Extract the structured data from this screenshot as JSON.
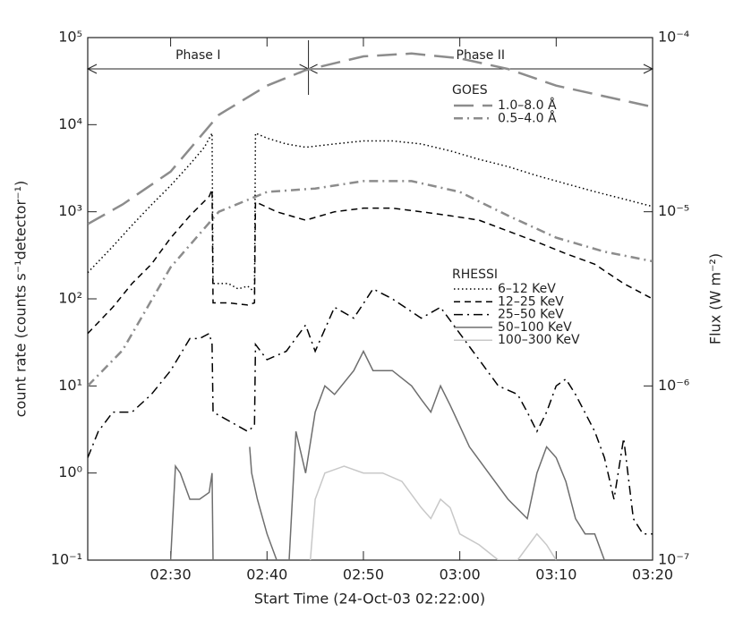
{
  "chart_data": {
    "type": "line",
    "log_scale": true,
    "xlabel": "Start Time (24-Oct-03 02:22:00)",
    "ylabel": "count rate (counts s⁻¹detector⁻¹)",
    "y2label": "Flux (W m⁻²)",
    "xlim": [
      -0.6,
      58
    ],
    "xticks": [
      {
        "value": 8,
        "label": "02:30"
      },
      {
        "value": 18,
        "label": "02:40"
      },
      {
        "value": 28,
        "label": "02:50"
      },
      {
        "value": 38,
        "label": "03:00"
      },
      {
        "value": 48,
        "label": "03:10"
      },
      {
        "value": 58,
        "label": "03:20"
      }
    ],
    "ylim": [
      0.1,
      100000
    ],
    "yticks": [
      {
        "value": 0.1,
        "label": "10⁻¹"
      },
      {
        "value": 1,
        "label": "10⁰"
      },
      {
        "value": 10,
        "label": "10¹"
      },
      {
        "value": 100,
        "label": "10²"
      },
      {
        "value": 1000,
        "label": "10³"
      },
      {
        "value": 10000,
        "label": "10⁴"
      },
      {
        "value": 100000,
        "label": "10⁵"
      }
    ],
    "y2lim": [
      1e-07,
      0.0001
    ],
    "y2ticks": [
      {
        "value": 1e-07,
        "label": "10⁻⁷"
      },
      {
        "value": 1e-06,
        "label": "10⁻⁶"
      },
      {
        "value": 1e-05,
        "label": "10⁻⁵"
      },
      {
        "value": 0.0001,
        "label": "10⁻⁴"
      }
    ],
    "annotations": [
      {
        "label": "Phase I",
        "x_range": [
          -0.6,
          22.3
        ]
      },
      {
        "label": "Phase II",
        "x_range": [
          22.3,
          58
        ]
      }
    ],
    "series": [
      {
        "name": "1.0–8.0 Å",
        "group": "GOES",
        "axis": "y2",
        "color": "#8c8c8c",
        "dash": "long-dash",
        "x": [
          -0.6,
          3,
          8,
          13,
          18,
          22,
          28,
          33,
          38,
          43,
          48,
          53,
          58
        ],
        "values": [
          8.5e-06,
          1.1e-05,
          1.7e-05,
          3.6e-05,
          5.3e-05,
          6.5e-05,
          7.8e-05,
          8.1e-05,
          7.6e-05,
          6.6e-05,
          5.3e-05,
          4.6e-05,
          4e-05
        ]
      },
      {
        "name": "0.5–4.0 Å",
        "group": "GOES",
        "axis": "y2",
        "color": "#8c8c8c",
        "dash": "dash-dot",
        "x": [
          -0.6,
          3,
          8,
          13,
          18,
          23,
          28,
          33,
          38,
          43,
          48,
          53,
          58
        ],
        "values": [
          1e-06,
          1.6e-06,
          4.8e-06,
          1e-05,
          1.3e-05,
          1.36e-05,
          1.5e-05,
          1.5e-05,
          1.3e-05,
          9.5e-06,
          7.1e-06,
          5.9e-06,
          5.2e-06
        ]
      },
      {
        "name": "6–12 KeV",
        "group": "RHESSI",
        "color": "#000000",
        "dash": "dot",
        "x": [
          -0.6,
          2,
          4,
          6,
          8,
          10,
          11.5,
          12.3,
          12.4,
          14,
          15,
          16,
          16.7,
          16.8,
          18,
          20,
          22,
          25,
          28,
          31,
          34,
          37,
          40,
          43,
          46,
          49,
          52,
          55,
          58
        ],
        "values": [
          200,
          400,
          700,
          1200,
          2000,
          3500,
          5500,
          8000,
          150,
          150,
          130,
          140,
          120,
          8000,
          7000,
          6000,
          5500,
          6000,
          6500,
          6500,
          6000,
          5000,
          4000,
          3300,
          2600,
          2100,
          1700,
          1400,
          1150
        ]
      },
      {
        "name": "12–25 KeV",
        "group": "RHESSI",
        "color": "#000000",
        "dash": "dash",
        "x": [
          -0.6,
          2,
          4,
          6,
          8,
          10,
          12,
          12.3,
          12.4,
          14,
          16,
          16.7,
          16.8,
          19,
          22,
          25,
          28,
          31,
          34,
          37,
          40,
          43,
          46,
          49,
          52,
          55,
          58
        ],
        "values": [
          40,
          80,
          150,
          250,
          500,
          900,
          1500,
          1800,
          90,
          90,
          85,
          90,
          1300,
          1000,
          800,
          1000,
          1100,
          1100,
          1000,
          900,
          800,
          600,
          450,
          330,
          250,
          150,
          100
        ]
      },
      {
        "name": "25–50 KeV",
        "group": "RHESSI",
        "color": "#000000",
        "dash": "dash-dot",
        "x": [
          -0.6,
          0.5,
          2,
          4,
          6,
          8,
          10,
          11,
          12,
          12.3,
          12.4,
          14,
          16,
          16.7,
          16.8,
          18,
          20,
          22,
          23,
          25,
          27,
          29,
          31,
          34,
          36,
          38,
          40,
          42,
          44,
          45,
          46,
          47,
          48,
          49,
          50,
          52,
          53,
          54,
          55,
          56,
          57,
          58
        ],
        "values": [
          1.5,
          3,
          5,
          5,
          8,
          15,
          35,
          35,
          40,
          30,
          5,
          4,
          3,
          3.5,
          30,
          20,
          25,
          50,
          25,
          80,
          60,
          130,
          100,
          60,
          80,
          40,
          20,
          10,
          8,
          5,
          3,
          5,
          10,
          12,
          8,
          3,
          1.5,
          0.5,
          2.5,
          0.3,
          0.2,
          0.2
        ]
      },
      {
        "name": "50–100 KeV",
        "group": "RHESSI",
        "color": "#6e6e6e",
        "dash": "solid",
        "x": [
          8,
          8.5,
          9,
          10,
          11,
          12,
          12.3,
          12.4,
          12.5,
          16.2,
          16.4,
          17,
          18,
          19,
          19.5,
          20.3,
          21,
          22,
          23,
          24,
          25,
          27,
          28,
          29,
          31,
          33,
          34,
          35,
          36,
          37,
          39,
          41,
          43,
          45,
          46,
          47,
          48,
          49,
          50,
          51,
          52,
          53
        ],
        "values": [
          0.1,
          1.2,
          1,
          0.5,
          0.5,
          0.6,
          1.0,
          0.1,
          null,
          2,
          1,
          0.5,
          0.2,
          0.1,
          null,
          0.1,
          3,
          1,
          5,
          10,
          8,
          15,
          25,
          15,
          15,
          10,
          7,
          5,
          10,
          6,
          2,
          1,
          0.5,
          0.3,
          1,
          2,
          1.5,
          0.8,
          0.3,
          0.2,
          0.2,
          0.1
        ]
      },
      {
        "name": "100–300 KeV",
        "group": "RHESSI",
        "color": "#c8c8c8",
        "dash": "solid",
        "x": [
          22.5,
          23,
          24,
          26,
          28,
          30,
          32,
          34,
          35,
          36,
          37,
          38,
          40,
          42,
          44,
          46,
          47,
          48
        ],
        "values": [
          0.1,
          0.5,
          1,
          1.2,
          1,
          1,
          0.8,
          0.4,
          0.3,
          0.5,
          0.4,
          0.2,
          0.15,
          0.1,
          0.1,
          0.2,
          0.15,
          0.1
        ]
      }
    ]
  }
}
